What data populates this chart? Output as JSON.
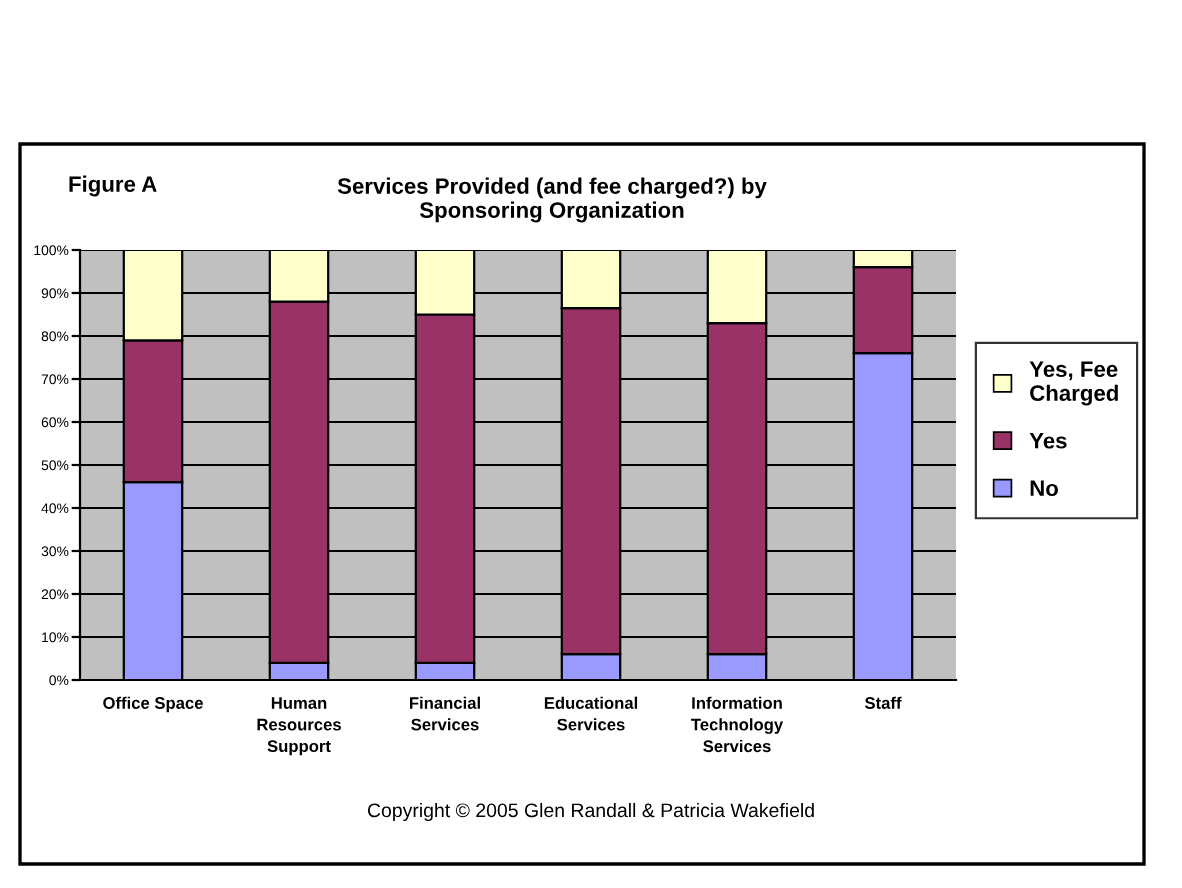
{
  "chart_data": {
    "type": "bar",
    "stacked": true,
    "title": "Services Provided (and fee charged?) by Sponsoring Organization",
    "categories": [
      "Office Space",
      "Human Resources Support",
      "Financial Services",
      "Educational Services",
      "Information Technology Services",
      "Staff"
    ],
    "series": [
      {
        "name": "No",
        "color": "#9999ff",
        "values": [
          46,
          4,
          4,
          6,
          6,
          76
        ]
      },
      {
        "name": "Yes",
        "color": "#993366",
        "values": [
          33,
          84,
          81,
          80.5,
          77,
          20
        ]
      },
      {
        "name": "Yes, Fee Charged",
        "color": "#ffffcc",
        "values": [
          21,
          12,
          15,
          13.5,
          17,
          4
        ]
      }
    ],
    "ylim": [
      0,
      100
    ],
    "yticks": [
      {
        "value": 0,
        "label": "0%"
      },
      {
        "value": 10,
        "label": "10%"
      },
      {
        "value": 20,
        "label": "20%"
      },
      {
        "value": 30,
        "label": "30%"
      },
      {
        "value": 40,
        "label": "40%"
      },
      {
        "value": 50,
        "label": "50%"
      },
      {
        "value": 60,
        "label": "60%"
      },
      {
        "value": 70,
        "label": "70%"
      },
      {
        "value": 80,
        "label": "80%"
      },
      {
        "value": 90,
        "label": "90%"
      },
      {
        "value": 100,
        "label": "100%"
      }
    ],
    "grid": "y",
    "legend": "right",
    "annotations": [
      "Figure A",
      "Copyright © 2005 Glen Randall & Patricia Wakefield"
    ]
  }
}
